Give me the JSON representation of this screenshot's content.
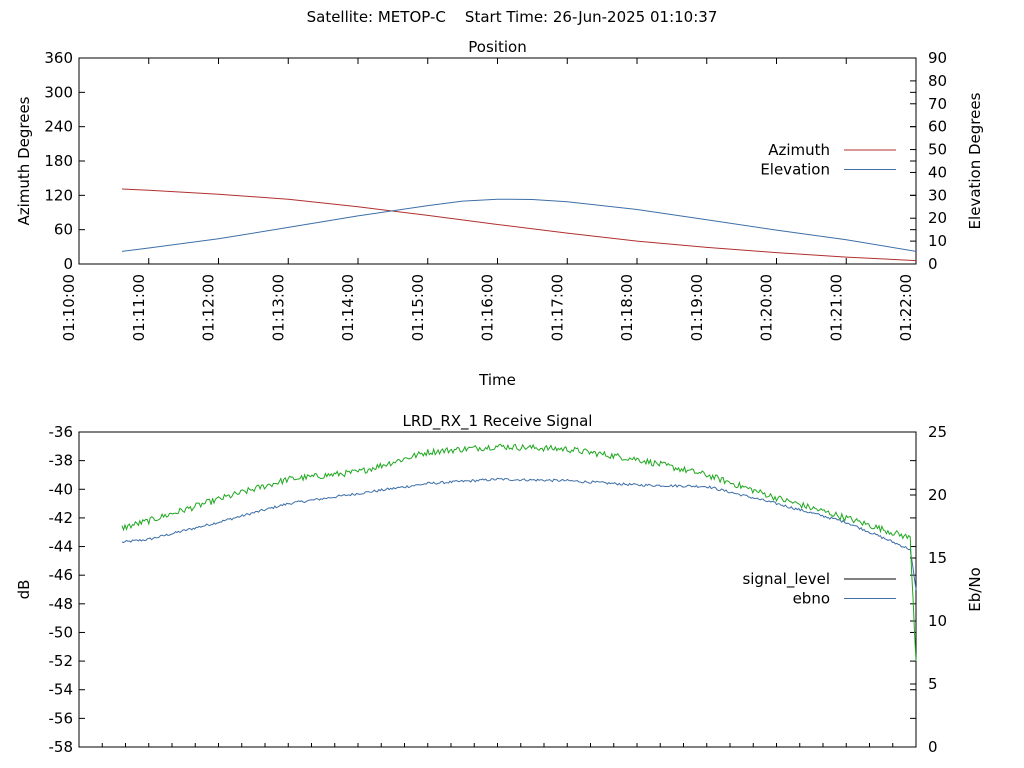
{
  "header": {
    "title": "Satellite: METOP-C    Start Time: 26-Jun-2025 01:10:37"
  },
  "chart_data": [
    {
      "type": "line",
      "title": "Position",
      "xlabel": "Time",
      "ylabel": "Azimuth Degrees",
      "y2label": "Elevation Degrees",
      "xlim": [
        "01:10:00",
        "01:22:00"
      ],
      "ylim": [
        0,
        360
      ],
      "y2lim": [
        0,
        90
      ],
      "x_ticks": [
        "01:10:00",
        "01:11:00",
        "01:12:00",
        "01:13:00",
        "01:14:00",
        "01:15:00",
        "01:16:00",
        "01:17:00",
        "01:18:00",
        "01:19:00",
        "01:20:00",
        "01:21:00",
        "01:22:00"
      ],
      "y_ticks": [
        "0",
        "60",
        "120",
        "180",
        "240",
        "300",
        "360"
      ],
      "y2_ticks": [
        "0",
        "10",
        "20",
        "30",
        "40",
        "50",
        "60",
        "70",
        "80",
        "90"
      ],
      "legend_position": "right",
      "series": [
        {
          "name": "Azimuth",
          "axis": "left",
          "color": "#b03030",
          "x": [
            "01:10:37",
            "01:11:00",
            "01:12:00",
            "01:13:00",
            "01:14:00",
            "01:15:00",
            "01:16:00",
            "01:17:00",
            "01:18:00",
            "01:19:00",
            "01:20:00",
            "01:21:00",
            "01:22:00"
          ],
          "values": [
            131,
            129,
            122,
            113,
            100,
            85,
            69,
            54,
            40,
            29,
            20,
            12,
            6
          ]
        },
        {
          "name": "Elevation",
          "axis": "right",
          "color": "#3e6fa8",
          "x": [
            "01:10:37",
            "01:11:00",
            "01:12:00",
            "01:13:00",
            "01:14:00",
            "01:15:00",
            "01:15:30",
            "01:16:00",
            "01:16:30",
            "01:17:00",
            "01:18:00",
            "01:19:00",
            "01:20:00",
            "01:21:00",
            "01:22:00"
          ],
          "values": [
            5.5,
            7,
            11,
            16,
            21,
            25.5,
            27.5,
            28.3,
            28.2,
            27.2,
            23.8,
            19.3,
            14.8,
            10.6,
            5.5
          ]
        }
      ]
    },
    {
      "type": "line",
      "title": "LRD_RX_1 Receive Signal",
      "ylabel": "dB",
      "y2label": "Eb/No",
      "xlim": [
        "01:10:00",
        "01:22:00"
      ],
      "ylim": [
        -58,
        -36
      ],
      "y2lim": [
        0,
        25
      ],
      "y_ticks": [
        "-36",
        "-38",
        "-40",
        "-42",
        "-44",
        "-46",
        "-48",
        "-50",
        "-52",
        "-54",
        "-56",
        "-58"
      ],
      "y2_ticks": [
        "0",
        "5",
        "10",
        "15",
        "20",
        "25"
      ],
      "legend_position": "right",
      "series": [
        {
          "name": "signal_level",
          "axis": "left",
          "color": "#000000",
          "x": [],
          "values": []
        },
        {
          "name": "ebno",
          "axis": "left",
          "color": "#3e6fa8",
          "x": [
            "01:10:37",
            "01:11:00",
            "01:12:00",
            "01:13:00",
            "01:14:00",
            "01:15:00",
            "01:16:00",
            "01:17:00",
            "01:18:00",
            "01:19:00",
            "01:20:00",
            "01:21:00",
            "01:21:55",
            "01:22:00"
          ],
          "values": [
            -43.7,
            -43.5,
            -42.3,
            -41.0,
            -40.3,
            -39.6,
            -39.3,
            -39.4,
            -39.7,
            -39.8,
            -41.0,
            -42.3,
            -44.2,
            -47.0
          ]
        },
        {
          "name": "",
          "axis": "left",
          "color": "#1fa81f",
          "x": [
            "01:10:37",
            "01:11:00",
            "01:12:00",
            "01:13:00",
            "01:14:00",
            "01:15:00",
            "01:16:00",
            "01:17:00",
            "01:18:00",
            "01:19:00",
            "01:20:00",
            "01:21:00",
            "01:21:55",
            "01:22:00"
          ],
          "values": [
            -42.7,
            -42.2,
            -40.7,
            -39.3,
            -38.8,
            -37.4,
            -37.0,
            -37.2,
            -37.9,
            -39.0,
            -40.6,
            -42.0,
            -43.4,
            -52.0
          ]
        }
      ]
    }
  ]
}
